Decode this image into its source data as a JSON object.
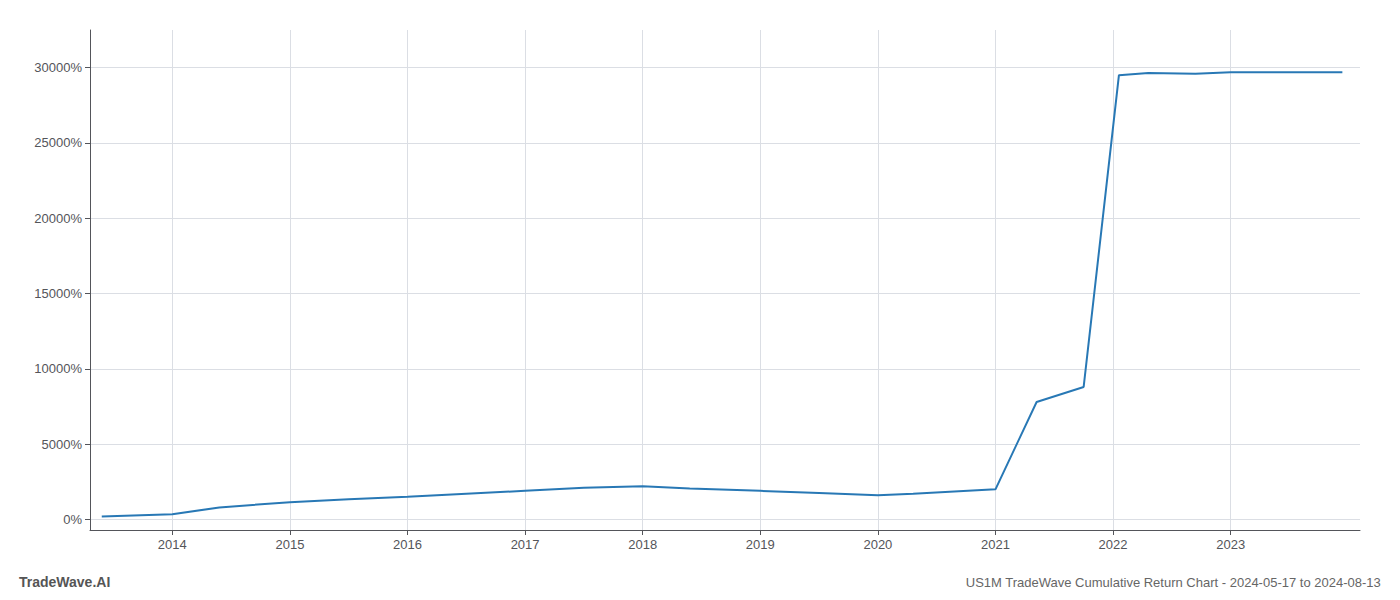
{
  "chart_data": {
    "type": "line",
    "title": "US1M TradeWave Cumulative Return Chart - 2024-05-17 to 2024-08-13",
    "annotations": [
      "TradeWave.AI"
    ],
    "x": [
      2013.4,
      2014.0,
      2014.4,
      2015.0,
      2015.5,
      2016.0,
      2016.5,
      2017.0,
      2017.5,
      2018.0,
      2018.4,
      2019.0,
      2019.5,
      2020.0,
      2020.3,
      2021.0,
      2021.35,
      2021.75,
      2022.05,
      2022.3,
      2022.7,
      2023.0,
      2023.5,
      2023.95
    ],
    "values": [
      200,
      350,
      800,
      1150,
      1350,
      1500,
      1700,
      1900,
      2100,
      2200,
      2050,
      1900,
      1750,
      1600,
      1700,
      2000,
      7800,
      8800,
      29500,
      29650,
      29600,
      29700,
      29700,
      29700
    ],
    "color": "#2878b5",
    "xlim": [
      2013.3,
      2024.1
    ],
    "xticks": [
      2014,
      2015,
      2016,
      2017,
      2018,
      2019,
      2020,
      2021,
      2022,
      2023
    ],
    "ylim": [
      -700,
      32500
    ],
    "yticks": [
      {
        "value": 0,
        "label": "0%"
      },
      {
        "value": 5000,
        "label": "5000%"
      },
      {
        "value": 10000,
        "label": "10000%"
      },
      {
        "value": 15000,
        "label": "15000%"
      },
      {
        "value": 20000,
        "label": "20000%"
      },
      {
        "value": 25000,
        "label": "25000%"
      },
      {
        "value": 30000,
        "label": "30000%"
      }
    ],
    "grid": true
  }
}
